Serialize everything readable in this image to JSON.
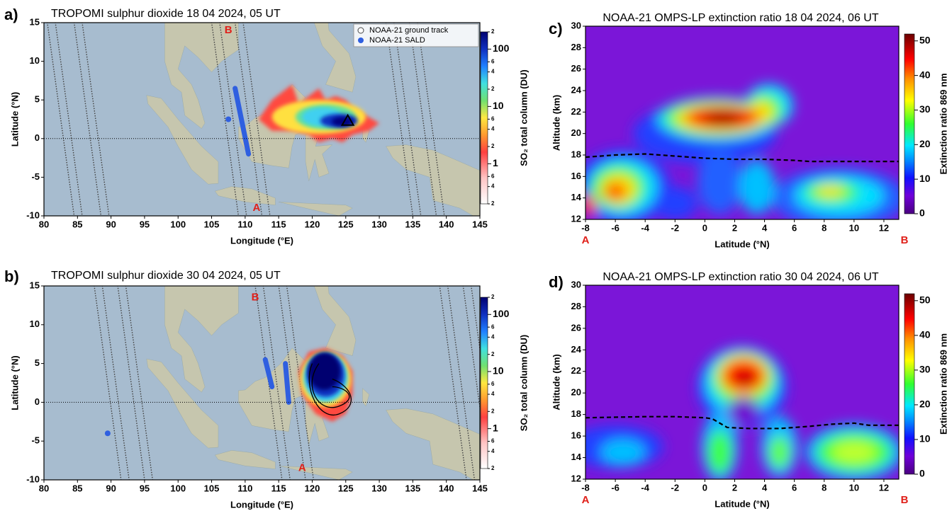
{
  "chart_data": [
    {
      "type": "map",
      "panel_label": "a)",
      "title": "TROPOMI sulphur dioxide 18 04 2024, 05 UT",
      "x_label": "Longitude (°E)",
      "y_label": "Latitude (°N)",
      "xlim": [
        80,
        145
      ],
      "xticks": [
        80,
        85,
        90,
        95,
        100,
        105,
        110,
        115,
        120,
        125,
        130,
        135,
        140,
        145
      ],
      "ylim": [
        -10,
        15
      ],
      "yticks": [
        -10,
        -5,
        0,
        5,
        10,
        15
      ],
      "legend": [
        "NOAA-21 ground track",
        "NOAA-21 SALD"
      ],
      "annotations": [
        "B",
        "A"
      ],
      "colorbar": {
        "label": "SO₂ total column (DU)",
        "log": true,
        "clim": [
          0.2,
          200
        ],
        "ticks": [
          {
            "value": 0.2,
            "label": "2"
          },
          {
            "value": 0.4,
            "label": "4"
          },
          {
            "value": 0.6,
            "label": "6"
          },
          1,
          {
            "value": 2,
            "label": "2"
          },
          {
            "value": 4,
            "label": "4"
          },
          {
            "value": 6,
            "label": "6"
          },
          10,
          {
            "value": 20,
            "label": "2"
          },
          {
            "value": 40,
            "label": "4"
          },
          {
            "value": 60,
            "label": "6"
          },
          100,
          {
            "value": 200,
            "label": "2"
          }
        ]
      }
    },
    {
      "type": "map",
      "panel_label": "b)",
      "title": "TROPOMI sulphur dioxide 30 04 2024, 05 UT",
      "x_label": "Longitude (°E)",
      "y_label": "Latitude (°N)",
      "xlim": [
        80,
        145
      ],
      "xticks": [
        80,
        85,
        90,
        95,
        100,
        105,
        110,
        115,
        120,
        125,
        130,
        135,
        140,
        145
      ],
      "ylim": [
        -10,
        15
      ],
      "yticks": [
        -10,
        -5,
        0,
        5,
        10,
        15
      ],
      "annotations": [
        "B",
        "A"
      ],
      "colorbar": {
        "label": "SO₂ total column (DU)",
        "log": true,
        "clim": [
          0.2,
          200
        ],
        "ticks": [
          {
            "value": 0.2,
            "label": "2"
          },
          {
            "value": 0.4,
            "label": "4"
          },
          {
            "value": 0.6,
            "label": "6"
          },
          1,
          {
            "value": 2,
            "label": "2"
          },
          {
            "value": 4,
            "label": "4"
          },
          {
            "value": 6,
            "label": "6"
          },
          10,
          {
            "value": 20,
            "label": "2"
          },
          {
            "value": 40,
            "label": "4"
          },
          {
            "value": 60,
            "label": "6"
          },
          100,
          {
            "value": 200,
            "label": "2"
          }
        ]
      }
    },
    {
      "type": "heatmap",
      "panel_label": "c)",
      "title": "NOAA-21 OMPS-LP extinction ratio 18 04 2024, 06 UT",
      "x_label": "Latitude (°N)",
      "y_label": "Altitude (km)",
      "xlim": [
        -8,
        13
      ],
      "xticks": [
        -8,
        -6,
        -4,
        -2,
        0,
        2,
        4,
        6,
        8,
        10,
        12
      ],
      "ylim": [
        12,
        30
      ],
      "yticks": [
        12,
        14,
        16,
        18,
        20,
        22,
        24,
        26,
        28,
        30
      ],
      "annotations": [
        "A",
        "B"
      ],
      "x": [
        -8,
        -6,
        -4,
        -2,
        0,
        2,
        4,
        6,
        7,
        10,
        13
      ],
      "values": [
        17.8,
        18.0,
        18.1,
        17.9,
        17.7,
        17.6,
        17.6,
        17.5,
        17.4,
        17.4,
        17.4
      ],
      "colorbar": {
        "label": "Extinction ratio 869 nm",
        "clim": [
          0,
          52
        ],
        "ticks": [
          0,
          10,
          20,
          30,
          40,
          50
        ]
      }
    },
    {
      "type": "heatmap",
      "panel_label": "d)",
      "title": "NOAA-21 OMPS-LP extinction ratio 30 04 2024, 06 UT",
      "x_label": "Latitude (°N)",
      "y_label": "Altitude (km)",
      "xlim": [
        -8,
        13
      ],
      "xticks": [
        -8,
        -6,
        -4,
        -2,
        0,
        2,
        4,
        6,
        8,
        10,
        12
      ],
      "ylim": [
        12,
        30
      ],
      "yticks": [
        12,
        14,
        16,
        18,
        20,
        22,
        24,
        26,
        28,
        30
      ],
      "annotations": [
        "A",
        "B"
      ],
      "x": [
        -8,
        -4,
        -2,
        0,
        0.5,
        1.5,
        3,
        5,
        7,
        8.5,
        10,
        11,
        13
      ],
      "values": [
        17.7,
        17.8,
        17.8,
        17.7,
        17.6,
        16.8,
        16.7,
        16.7,
        16.9,
        17.1,
        17.2,
        17.0,
        17.0
      ],
      "colorbar": {
        "label": "Extinction ratio 869 nm",
        "clim": [
          0,
          52
        ],
        "ticks": [
          0,
          10,
          20,
          30,
          40,
          50
        ]
      }
    }
  ]
}
